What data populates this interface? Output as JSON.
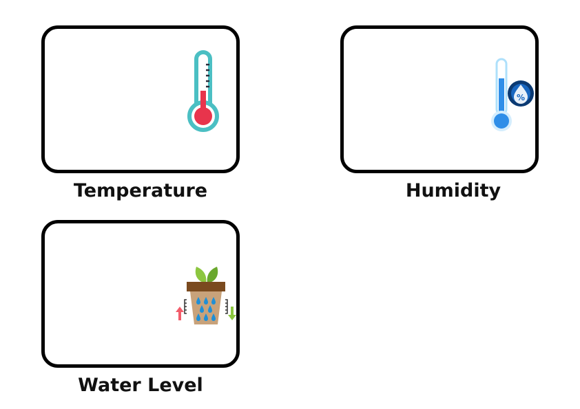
{
  "widgets": [
    {
      "label": "Temperature",
      "icon": "thermometer-icon"
    },
    {
      "label": "Humidity",
      "icon": "humidity-thermometer-icon"
    },
    {
      "label": "Water Level",
      "icon": "plant-pot-water-level-icon"
    }
  ],
  "colors": {
    "card_border": "#000000",
    "thermo_outline": "#4bbfc3",
    "thermo_fill": "#e8344c",
    "humidity_blue": "#2f8ee8",
    "humidity_badge": "#0b3a73",
    "leaf_green": "#8cc63f",
    "pot_rim": "#7a4a1f",
    "pot_body": "#c8a27a",
    "drop_blue": "#1f8fd6",
    "arrow_red": "#f25c6a",
    "arrow_green": "#8cc63f"
  }
}
